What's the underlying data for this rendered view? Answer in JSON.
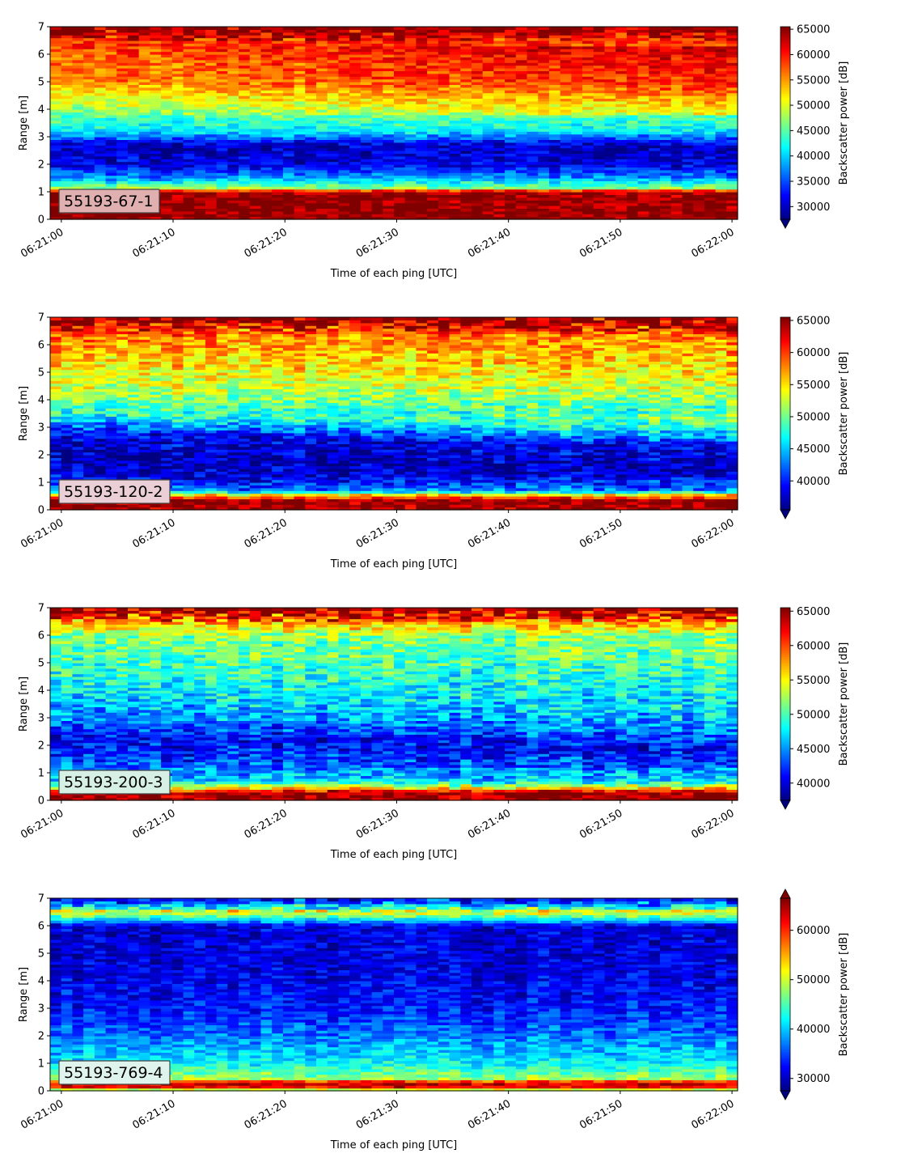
{
  "figure": {
    "background": "#ffffff",
    "colormap": "jet"
  },
  "chart_data": [
    {
      "type": "heatmap",
      "label": "55193-67-1",
      "label_box_color": "#e0b0b0",
      "xlabel": "Time of each ping [UTC]",
      "ylabel": "Range [m]",
      "x_ticks": [
        "06:21:00",
        "06:21:10",
        "06:21:20",
        "06:21:30",
        "06:21:40",
        "06:21:50",
        "06:22:00"
      ],
      "xlim": [
        "06:20:59",
        "06:22:00.5"
      ],
      "ylim": [
        0,
        7
      ],
      "y_ticks": [
        "0",
        "1",
        "2",
        "3",
        "4",
        "5",
        "6",
        "7"
      ],
      "colorbar": {
        "label": "Backscatter power [dB]",
        "ticks": [
          "30000",
          "35000",
          "40000",
          "45000",
          "50000",
          "55000",
          "60000",
          "65000"
        ],
        "range": [
          27500,
          65500
        ],
        "extend": "min"
      },
      "profile": [
        {
          "range_m": 0.0,
          "value": 65000
        },
        {
          "range_m": 0.25,
          "value": 65000
        },
        {
          "range_m": 1.0,
          "value": 64000
        },
        {
          "range_m": 1.15,
          "value": 47000
        },
        {
          "range_m": 1.5,
          "value": 38000
        },
        {
          "range_m": 2.0,
          "value": 31000
        },
        {
          "range_m": 2.7,
          "value": 30000
        },
        {
          "range_m": 3.2,
          "value": 41000
        },
        {
          "range_m": 4.0,
          "value": 47000
        },
        {
          "range_m": 5.0,
          "value": 55000
        },
        {
          "range_m": 6.0,
          "value": 57000
        },
        {
          "range_m": 6.6,
          "value": 60000
        },
        {
          "range_m": 7.0,
          "value": 65000
        }
      ]
    },
    {
      "type": "heatmap",
      "label": "55193-120-2",
      "label_box_color": "#eacfd6",
      "xlabel": "Time of each ping [UTC]",
      "ylabel": "Range [m]",
      "x_ticks": [
        "06:21:00",
        "06:21:10",
        "06:21:20",
        "06:21:30",
        "06:21:40",
        "06:21:50",
        "06:22:00"
      ],
      "xlim": [
        "06:20:59",
        "06:22:00.5"
      ],
      "ylim": [
        0,
        7
      ],
      "y_ticks": [
        "0",
        "1",
        "2",
        "3",
        "4",
        "5",
        "6",
        "7"
      ],
      "colorbar": {
        "label": "Backscatter power [dB]",
        "ticks": [
          "40000",
          "45000",
          "50000",
          "55000",
          "60000",
          "65000"
        ],
        "range": [
          35500,
          65500
        ],
        "extend": "min"
      },
      "profile": [
        {
          "range_m": 0.0,
          "value": 65000
        },
        {
          "range_m": 0.35,
          "value": 65000
        },
        {
          "range_m": 0.55,
          "value": 55000
        },
        {
          "range_m": 0.7,
          "value": 43000
        },
        {
          "range_m": 1.2,
          "value": 39000
        },
        {
          "range_m": 2.0,
          "value": 37000
        },
        {
          "range_m": 2.8,
          "value": 39000
        },
        {
          "range_m": 3.5,
          "value": 48000
        },
        {
          "range_m": 4.5,
          "value": 53000
        },
        {
          "range_m": 5.5,
          "value": 56000
        },
        {
          "range_m": 6.3,
          "value": 58000
        },
        {
          "range_m": 7.0,
          "value": 65000
        }
      ]
    },
    {
      "type": "heatmap",
      "label": "55193-200-3",
      "label_box_color": "#d6f0e4",
      "xlabel": "Time of each ping [UTC]",
      "ylabel": "Range [m]",
      "x_ticks": [
        "06:21:00",
        "06:21:10",
        "06:21:20",
        "06:21:30",
        "06:21:40",
        "06:21:50",
        "06:22:00"
      ],
      "xlim": [
        "06:20:59",
        "06:22:00.5"
      ],
      "ylim": [
        0,
        7
      ],
      "y_ticks": [
        "0",
        "1",
        "2",
        "3",
        "4",
        "5",
        "6",
        "7"
      ],
      "colorbar": {
        "label": "Backscatter power [dB]",
        "ticks": [
          "40000",
          "45000",
          "50000",
          "55000",
          "60000",
          "65000"
        ],
        "range": [
          37500,
          65500
        ],
        "extend": "min"
      },
      "profile": [
        {
          "range_m": 0.0,
          "value": 65000
        },
        {
          "range_m": 0.3,
          "value": 65000
        },
        {
          "range_m": 0.45,
          "value": 56000
        },
        {
          "range_m": 0.7,
          "value": 47000
        },
        {
          "range_m": 1.5,
          "value": 43000
        },
        {
          "range_m": 2.3,
          "value": 41000
        },
        {
          "range_m": 3.0,
          "value": 45000
        },
        {
          "range_m": 4.0,
          "value": 48000
        },
        {
          "range_m": 5.0,
          "value": 50000
        },
        {
          "range_m": 6.0,
          "value": 52000
        },
        {
          "range_m": 6.5,
          "value": 58000
        },
        {
          "range_m": 7.0,
          "value": 65000
        }
      ]
    },
    {
      "type": "heatmap",
      "label": "55193-769-4",
      "label_box_color": "#dff4ec",
      "xlabel": "Time of each ping [UTC]",
      "ylabel": "Range [m]",
      "x_ticks": [
        "06:21:00",
        "06:21:10",
        "06:21:20",
        "06:21:30",
        "06:21:40",
        "06:21:50",
        "06:22:00"
      ],
      "xlim": [
        "06:20:59",
        "06:22:00.5"
      ],
      "ylim": [
        0,
        7
      ],
      "y_ticks": [
        "0",
        "1",
        "2",
        "3",
        "4",
        "5",
        "6",
        "7"
      ],
      "colorbar": {
        "label": "Backscatter power [dB]",
        "ticks": [
          "30000",
          "40000",
          "50000",
          "60000"
        ],
        "range": [
          27500,
          66500
        ],
        "extend": "both"
      },
      "profile": [
        {
          "range_m": 0.0,
          "value": 45000
        },
        {
          "range_m": 0.15,
          "value": 62000
        },
        {
          "range_m": 0.3,
          "value": 64000
        },
        {
          "range_m": 0.45,
          "value": 48000
        },
        {
          "range_m": 1.0,
          "value": 42000
        },
        {
          "range_m": 2.0,
          "value": 37000
        },
        {
          "range_m": 3.0,
          "value": 33000
        },
        {
          "range_m": 4.5,
          "value": 31000
        },
        {
          "range_m": 6.0,
          "value": 31000
        },
        {
          "range_m": 6.5,
          "value": 52000
        },
        {
          "range_m": 6.7,
          "value": 40000
        },
        {
          "range_m": 7.0,
          "value": 30000
        }
      ]
    }
  ]
}
